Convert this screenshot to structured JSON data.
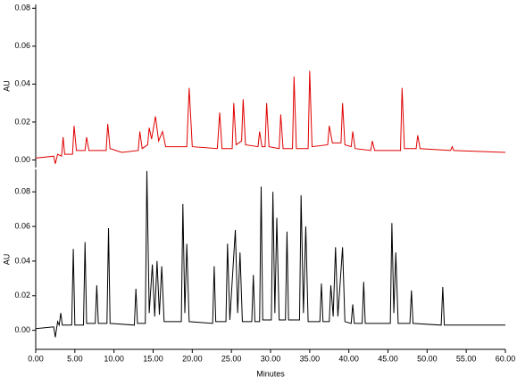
{
  "chart_data": [
    {
      "type": "line",
      "ylabel": "AU",
      "xlim": [
        0,
        60
      ],
      "ylim": [
        -0.004,
        0.082
      ],
      "yticks": [
        {
          "value": 0,
          "label": "0.00"
        },
        {
          "value": 0.02,
          "label": "0.02"
        },
        {
          "value": 0.04,
          "label": "0.04"
        },
        {
          "value": 0.06,
          "label": "0.06"
        },
        {
          "value": 0.08,
          "label": "0.08"
        }
      ],
      "color": "#e00000",
      "x": [
        0,
        2.3,
        2.5,
        2.8,
        3.3,
        3.5,
        3.7,
        4.7,
        4.9,
        5.2,
        6.3,
        6.5,
        6.8,
        9.0,
        9.2,
        9.5,
        11,
        13.1,
        13.3,
        13.6,
        14.3,
        14.5,
        14.8,
        15.3,
        15.7,
        16.2,
        16.6,
        19.3,
        19.6,
        20.0,
        23.2,
        23.5,
        23.8,
        25.1,
        25.3,
        25.6,
        26.3,
        26.5,
        26.8,
        28.4,
        28.6,
        28.9,
        29.3,
        29.5,
        29.8,
        31.1,
        31.3,
        31.6,
        32.8,
        33.0,
        33.3,
        34.8,
        35.0,
        35.3,
        37.3,
        37.5,
        37.9,
        39.0,
        39.2,
        39.5,
        40.3,
        40.5,
        40.8,
        42.8,
        43.0,
        43.3,
        46.6,
        46.8,
        47.1,
        48.6,
        48.8,
        49.1,
        53.0,
        53.2,
        53.4,
        60
      ],
      "values": [
        0.001,
        0.002,
        -0.002,
        0.003,
        0.002,
        0.012,
        0.003,
        0.003,
        0.018,
        0.005,
        0.005,
        0.012,
        0.005,
        0.005,
        0.019,
        0.006,
        0.004,
        0.005,
        0.015,
        0.006,
        0.008,
        0.017,
        0.011,
        0.023,
        0.01,
        0.015,
        0.007,
        0.007,
        0.038,
        0.007,
        0.006,
        0.025,
        0.006,
        0.006,
        0.03,
        0.008,
        0.01,
        0.032,
        0.008,
        0.007,
        0.015,
        0.007,
        0.007,
        0.03,
        0.007,
        0.006,
        0.024,
        0.006,
        0.006,
        0.044,
        0.006,
        0.006,
        0.047,
        0.007,
        0.008,
        0.018,
        0.009,
        0.009,
        0.03,
        0.008,
        0.007,
        0.015,
        0.006,
        0.005,
        0.01,
        0.005,
        0.005,
        0.038,
        0.006,
        0.006,
        0.013,
        0.006,
        0.005,
        0.007,
        0.005,
        0.004
      ]
    },
    {
      "type": "line",
      "ylabel": "AU",
      "xlabel": "Minutes",
      "xlim": [
        0,
        60
      ],
      "ylim": [
        -0.011,
        0.093
      ],
      "yticks": [
        {
          "value": 0,
          "label": "0.00"
        },
        {
          "value": 0.02,
          "label": "0.02"
        },
        {
          "value": 0.04,
          "label": "0.04"
        },
        {
          "value": 0.06,
          "label": "0.06"
        },
        {
          "value": 0.08,
          "label": "0.08"
        }
      ],
      "xticks": [
        {
          "value": 0,
          "label": "0.00"
        },
        {
          "value": 5,
          "label": "5.00"
        },
        {
          "value": 10,
          "label": "10.00"
        },
        {
          "value": 15,
          "label": "15.00"
        },
        {
          "value": 20,
          "label": "20.00"
        },
        {
          "value": 25,
          "label": "25.00"
        },
        {
          "value": 30,
          "label": "30.00"
        },
        {
          "value": 35,
          "label": "35.00"
        },
        {
          "value": 40,
          "label": "40.00"
        },
        {
          "value": 45,
          "label": "45.00"
        },
        {
          "value": 50,
          "label": "50.00"
        },
        {
          "value": 55,
          "label": "55.00"
        },
        {
          "value": 60,
          "label": "60.00"
        }
      ],
      "color": "#000000",
      "x": [
        0,
        2.3,
        2.5,
        2.8,
        3.0,
        3.2,
        3.4,
        4.6,
        4.8,
        5.0,
        6.1,
        6.3,
        6.5,
        7.6,
        7.8,
        8.0,
        9.1,
        9.3,
        9.5,
        12.6,
        12.8,
        13.0,
        14.0,
        14.2,
        14.5,
        14.9,
        15.2,
        15.5,
        15.8,
        16.1,
        16.4,
        18.6,
        18.8,
        19.05,
        19.3,
        19.6,
        22.6,
        22.8,
        23.0,
        24.3,
        24.5,
        24.8,
        25.5,
        25.8,
        26.1,
        26.4,
        27.6,
        27.8,
        28.0,
        28.6,
        28.8,
        29.0,
        30.1,
        30.3,
        30.55,
        30.8,
        31.1,
        31.9,
        32.1,
        32.3,
        33.7,
        33.9,
        34.2,
        34.5,
        34.8,
        36.3,
        36.5,
        36.7,
        37.5,
        37.7,
        38.0,
        38.3,
        38.6,
        39.2,
        39.5,
        40.3,
        40.5,
        40.7,
        41.7,
        41.9,
        42.1,
        45.3,
        45.5,
        45.75,
        46.0,
        46.3,
        47.8,
        48.0,
        48.2,
        51.8,
        52.0,
        52.2,
        60
      ],
      "values": [
        0.001,
        0.002,
        -0.004,
        0.005,
        0.003,
        0.01,
        0.003,
        0.003,
        0.047,
        0.003,
        0.003,
        0.051,
        0.004,
        0.004,
        0.026,
        0.004,
        0.004,
        0.059,
        0.004,
        0.003,
        0.024,
        0.004,
        0.004,
        0.092,
        0.01,
        0.038,
        0.008,
        0.04,
        0.009,
        0.037,
        0.005,
        0.005,
        0.073,
        0.01,
        0.05,
        0.005,
        0.004,
        0.037,
        0.005,
        0.005,
        0.05,
        0.006,
        0.058,
        0.01,
        0.045,
        0.005,
        0.005,
        0.032,
        0.005,
        0.005,
        0.083,
        0.006,
        0.006,
        0.08,
        0.01,
        0.065,
        0.006,
        0.006,
        0.057,
        0.006,
        0.006,
        0.078,
        0.01,
        0.06,
        0.005,
        0.005,
        0.027,
        0.005,
        0.005,
        0.026,
        0.008,
        0.048,
        0.008,
        0.048,
        0.005,
        0.004,
        0.015,
        0.004,
        0.004,
        0.028,
        0.004,
        0.004,
        0.062,
        0.01,
        0.045,
        0.004,
        0.004,
        0.023,
        0.004,
        0.003,
        0.025,
        0.003,
        0.003
      ]
    }
  ]
}
